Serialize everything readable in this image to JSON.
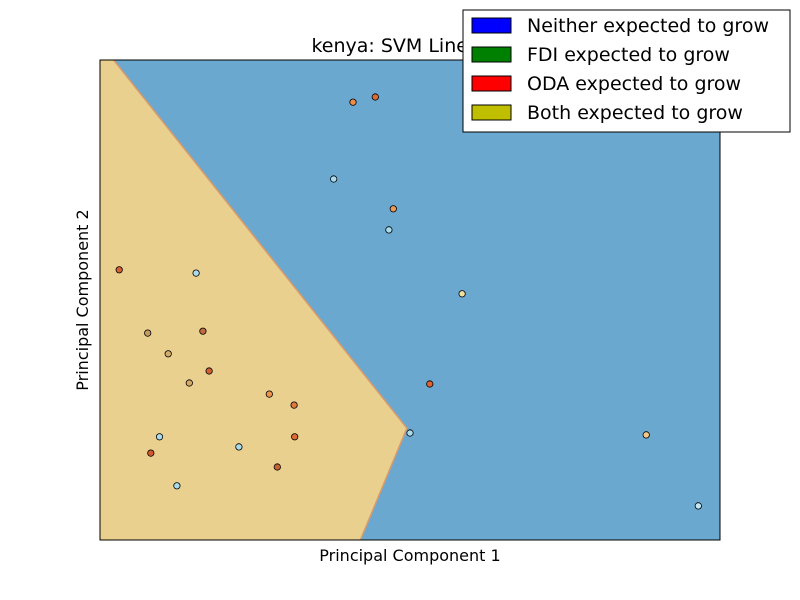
{
  "chart_data": {
    "type": "scatter",
    "title": "kenya: SVM Linear-O",
    "xlabel": "Principal Component 1",
    "ylabel": "Principal Component 2",
    "xlim": [
      0,
      100
    ],
    "ylim": [
      0,
      100
    ],
    "show_ticks": false,
    "legend_placement": "top-right",
    "legend": [
      {
        "label": "Neither expected to grow",
        "color": "#0000ff"
      },
      {
        "label": "FDI expected to grow",
        "color": "#008000"
      },
      {
        "label": "ODA expected to grow",
        "color": "#ff0000"
      },
      {
        "label": "Both expected to grow",
        "color": "#bfbf00"
      }
    ],
    "regions": [
      {
        "class": "Both expected to grow",
        "color": "#e9d08f",
        "polygon": [
          [
            0,
            100
          ],
          [
            2.2,
            100
          ],
          [
            49.5,
            23.3
          ],
          [
            42,
            0
          ],
          [
            0,
            0
          ]
        ]
      },
      {
        "class": "Neither expected to grow",
        "color": "#6ba8d0",
        "polygon": [
          [
            2.2,
            100
          ],
          [
            100,
            100
          ],
          [
            100,
            0
          ],
          [
            42,
            0
          ],
          [
            49.5,
            23.3
          ]
        ]
      }
    ],
    "points": [
      {
        "x": 40.8,
        "y": 91.2,
        "color": "#ef8c45"
      },
      {
        "x": 44.4,
        "y": 92.3,
        "color": "#dc6b34"
      },
      {
        "x": 37.7,
        "y": 75.2,
        "color": "#a9dbec"
      },
      {
        "x": 47.3,
        "y": 69.0,
        "color": "#ec9a54"
      },
      {
        "x": 46.6,
        "y": 64.6,
        "color": "#a9dbec"
      },
      {
        "x": 3.1,
        "y": 56.3,
        "color": "#d45f33"
      },
      {
        "x": 15.5,
        "y": 55.6,
        "color": "#a9dbec"
      },
      {
        "x": 58.4,
        "y": 51.3,
        "color": "#f0e0a0"
      },
      {
        "x": 7.7,
        "y": 43.1,
        "color": "#c69a63"
      },
      {
        "x": 16.6,
        "y": 43.5,
        "color": "#c06b3f"
      },
      {
        "x": 11.0,
        "y": 38.8,
        "color": "#d4ac6a"
      },
      {
        "x": 17.6,
        "y": 35.2,
        "color": "#d06034"
      },
      {
        "x": 14.4,
        "y": 32.7,
        "color": "#d4aa67"
      },
      {
        "x": 53.2,
        "y": 32.5,
        "color": "#e0622e"
      },
      {
        "x": 27.3,
        "y": 30.4,
        "color": "#ec934e"
      },
      {
        "x": 31.3,
        "y": 28.1,
        "color": "#dc7a3e"
      },
      {
        "x": 50.0,
        "y": 22.3,
        "color": "#a9dbec"
      },
      {
        "x": 9.6,
        "y": 21.5,
        "color": "#a9dbec"
      },
      {
        "x": 31.4,
        "y": 21.5,
        "color": "#dc6b34"
      },
      {
        "x": 88.1,
        "y": 21.9,
        "color": "#f4c88a"
      },
      {
        "x": 22.4,
        "y": 19.4,
        "color": "#a9dbec"
      },
      {
        "x": 8.2,
        "y": 18.1,
        "color": "#d15a30"
      },
      {
        "x": 28.6,
        "y": 15.2,
        "color": "#c8622f"
      },
      {
        "x": 12.4,
        "y": 11.3,
        "color": "#a9dbec"
      },
      {
        "x": 96.5,
        "y": 7.1,
        "color": "#c3e6f2"
      }
    ]
  }
}
